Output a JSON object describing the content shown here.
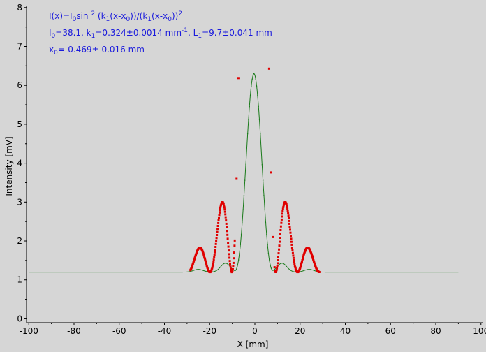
{
  "chart_data": {
    "type": "scatter",
    "xlabel": "X [mm]",
    "ylabel": "Intensity [mV]",
    "xlim": [
      -101,
      101
    ],
    "ylim": [
      -0.1,
      8.05
    ],
    "x_ticks": [
      -100,
      -80,
      -60,
      -40,
      -20,
      0,
      20,
      40,
      60,
      80,
      100
    ],
    "y_ticks": [
      0,
      1,
      2,
      3,
      4,
      5,
      6,
      7,
      8
    ],
    "grid": false,
    "legend": "none",
    "series": [
      {
        "kind": "measured",
        "color": "#1a7a1a",
        "marker": "small-dot",
        "x_range": [
          -100,
          90
        ],
        "baseline": 1.2,
        "peak_x": -0.4,
        "peak_y": 6.3,
        "side_peaks": [
          {
            "x": -25,
            "y": 1.27
          },
          {
            "x": -13,
            "y": 1.43
          },
          {
            "x": 12,
            "y": 1.43
          },
          {
            "x": 24,
            "y": 1.27
          }
        ]
      },
      {
        "kind": "fit",
        "color": "#e00000",
        "marker": "square-dot",
        "x_range": [
          -28.5,
          28.5
        ],
        "y_clip": 8,
        "params": {
          "I0": 38.1,
          "k1": 0.324,
          "x0": -0.469,
          "offset": 1.2
        }
      }
    ],
    "annotations": {
      "line1": {
        "main": "I(x)=I",
        "sub1": "0",
        "mid1": "sin ",
        "sup1": "2",
        "mid2": " (k",
        "sub2": "1",
        "mid3": "(x-x",
        "sub3": "0",
        "mid4": "))/(k",
        "sub4": "1",
        "mid5": "(x-x",
        "sub5": "0",
        "mid6": "))",
        "sup2": "2"
      },
      "line2": {
        "p1": "I",
        "s1": "0",
        "p2": "=38.1,  k",
        "s2": "1",
        "p3": "=0.324±0.0014 mm",
        "sup": "-1",
        "p4": ",  L",
        "s3": "1",
        "p5": "=9.7±0.041 mm"
      },
      "line3": {
        "p1": "x",
        "s1": "0",
        "p2": "=-0.469±  0.016 mm"
      }
    }
  }
}
